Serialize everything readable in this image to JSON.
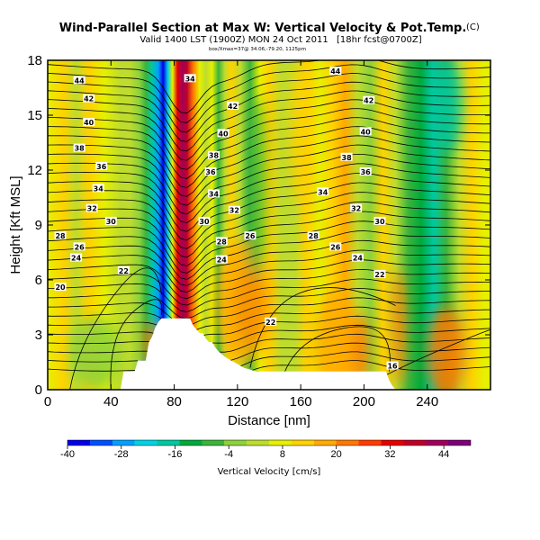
{
  "chart_data": {
    "type": "heatmap",
    "title": "Wind-Parallel Section at Max W: Vertical Velocity & Pot.Temp.",
    "title_mark": "(C)",
    "subtitle": "Valid 1400 LST (1900Z) MON 24 Oct 2011",
    "subtitle_note": "[18hr fcst@0700Z]",
    "fineprint": "box/Xmax=37@ 34.06,-79.20, 1125pm",
    "xlabel": "Distance [nm]",
    "ylabel": "Height [Kft MSL]",
    "xlim": [
      0,
      280
    ],
    "ylim": [
      0,
      18
    ],
    "xticks": [
      0,
      40,
      80,
      120,
      160,
      200,
      240
    ],
    "yticks": [
      0,
      3,
      6,
      9,
      12,
      15,
      18
    ],
    "grid": false,
    "colorbar": {
      "label": "Vertical Velocity [cm/s]",
      "range": [
        -40,
        50
      ],
      "ticks": [
        -40,
        -28,
        -16,
        -4,
        8,
        20,
        32,
        44
      ],
      "colors": [
        "#0000e6",
        "#0050ff",
        "#00a0ff",
        "#00d2e6",
        "#00c8a0",
        "#00aa3c",
        "#3cb43c",
        "#8cd23c",
        "#bedc2d",
        "#e6f000",
        "#ffd200",
        "#ffaa00",
        "#ff7800",
        "#ff3c00",
        "#e60000",
        "#be0028",
        "#a0005a",
        "#7d0078"
      ]
    },
    "theta_contours": {
      "units": "C",
      "levels": [
        16,
        20,
        22,
        24,
        26,
        28,
        30,
        32,
        34,
        36,
        38,
        40,
        42,
        44
      ],
      "labels": [
        {
          "text": "44",
          "x": 20,
          "y": 16.9
        },
        {
          "text": "42",
          "x": 26,
          "y": 15.9
        },
        {
          "text": "40",
          "x": 26,
          "y": 14.6
        },
        {
          "text": "38",
          "x": 20,
          "y": 13.2
        },
        {
          "text": "36",
          "x": 34,
          "y": 12.2
        },
        {
          "text": "34",
          "x": 32,
          "y": 11.0
        },
        {
          "text": "32",
          "x": 28,
          "y": 9.9
        },
        {
          "text": "30",
          "x": 40,
          "y": 9.2
        },
        {
          "text": "28",
          "x": 8,
          "y": 8.4
        },
        {
          "text": "26",
          "x": 20,
          "y": 7.8
        },
        {
          "text": "24",
          "x": 18,
          "y": 7.2
        },
        {
          "text": "22",
          "x": 48,
          "y": 6.5
        },
        {
          "text": "20",
          "x": 8,
          "y": 5.6
        },
        {
          "text": "34",
          "x": 90,
          "y": 17.0
        },
        {
          "text": "42",
          "x": 117,
          "y": 15.5
        },
        {
          "text": "40",
          "x": 111,
          "y": 14.0
        },
        {
          "text": "38",
          "x": 105,
          "y": 12.8
        },
        {
          "text": "36",
          "x": 103,
          "y": 11.9
        },
        {
          "text": "34",
          "x": 105,
          "y": 10.7
        },
        {
          "text": "32",
          "x": 118,
          "y": 9.8
        },
        {
          "text": "30",
          "x": 99,
          "y": 9.2
        },
        {
          "text": "28",
          "x": 110,
          "y": 8.1
        },
        {
          "text": "26",
          "x": 128,
          "y": 8.4
        },
        {
          "text": "24",
          "x": 110,
          "y": 7.1
        },
        {
          "text": "22",
          "x": 141,
          "y": 3.7
        },
        {
          "text": "44",
          "x": 182,
          "y": 17.4
        },
        {
          "text": "42",
          "x": 203,
          "y": 15.8
        },
        {
          "text": "40",
          "x": 201,
          "y": 14.1
        },
        {
          "text": "38",
          "x": 189,
          "y": 12.7
        },
        {
          "text": "36",
          "x": 201,
          "y": 11.9
        },
        {
          "text": "34",
          "x": 174,
          "y": 10.8
        },
        {
          "text": "32",
          "x": 195,
          "y": 9.9
        },
        {
          "text": "30",
          "x": 210,
          "y": 9.2
        },
        {
          "text": "28",
          "x": 168,
          "y": 8.4
        },
        {
          "text": "26",
          "x": 182,
          "y": 7.8
        },
        {
          "text": "24",
          "x": 196,
          "y": 7.2
        },
        {
          "text": "22",
          "x": 210,
          "y": 6.3
        },
        {
          "text": "16",
          "x": 218,
          "y": 1.3
        }
      ]
    },
    "terrain_cm": {
      "x": [
        0,
        46,
        48,
        55,
        57,
        62,
        64,
        66,
        68,
        70,
        72,
        74,
        78,
        82,
        86,
        90,
        92,
        94,
        96,
        98,
        100,
        102,
        104,
        106,
        108,
        112,
        116,
        120,
        124,
        128,
        132,
        136,
        150,
        170,
        190,
        210,
        214,
        216,
        218,
        220,
        240,
        260,
        280
      ],
      "y": [
        0,
        0,
        1.0,
        1.0,
        1.6,
        1.6,
        2.6,
        2.9,
        3.4,
        3.7,
        3.9,
        3.9,
        3.9,
        3.9,
        3.9,
        3.9,
        3.5,
        3.3,
        3.1,
        3.1,
        2.8,
        2.6,
        2.6,
        2.3,
        2.1,
        1.8,
        1.6,
        1.4,
        1.2,
        1.1,
        1.0,
        1.0,
        1.0,
        1.0,
        1.0,
        1.0,
        1.0,
        0.5,
        0.2,
        0,
        0,
        0,
        0
      ]
    },
    "w_field_columns": [
      {
        "x": 0,
        "w": 6
      },
      {
        "x": 10,
        "w": 10
      },
      {
        "x": 18,
        "w": 3
      },
      {
        "x": 26,
        "w": 12
      },
      {
        "x": 36,
        "w": 6
      },
      {
        "x": 46,
        "w": 0
      },
      {
        "x": 52,
        "w": 4
      },
      {
        "x": 58,
        "w": -4
      },
      {
        "x": 62,
        "w": -10
      },
      {
        "x": 66,
        "w": -20
      },
      {
        "x": 70,
        "w": -30
      },
      {
        "x": 73,
        "w": -38
      },
      {
        "x": 76,
        "w": -24
      },
      {
        "x": 79,
        "w": 8
      },
      {
        "x": 82,
        "w": 30
      },
      {
        "x": 85,
        "w": 42
      },
      {
        "x": 88,
        "w": 36
      },
      {
        "x": 92,
        "w": 20
      },
      {
        "x": 96,
        "w": 8
      },
      {
        "x": 100,
        "w": 0
      },
      {
        "x": 104,
        "w": 6
      },
      {
        "x": 108,
        "w": -6
      },
      {
        "x": 112,
        "w": 4
      },
      {
        "x": 116,
        "w": 10
      },
      {
        "x": 122,
        "w": 2
      },
      {
        "x": 128,
        "w": -8
      },
      {
        "x": 134,
        "w": 8
      },
      {
        "x": 140,
        "w": 12
      },
      {
        "x": 148,
        "w": 0
      },
      {
        "x": 156,
        "w": 4
      },
      {
        "x": 164,
        "w": 10
      },
      {
        "x": 172,
        "w": 6
      },
      {
        "x": 180,
        "w": 12
      },
      {
        "x": 188,
        "w": 18
      },
      {
        "x": 196,
        "w": 4
      },
      {
        "x": 204,
        "w": -2
      },
      {
        "x": 212,
        "w": 14
      },
      {
        "x": 220,
        "w": 4
      },
      {
        "x": 228,
        "w": -6
      },
      {
        "x": 236,
        "w": -12
      },
      {
        "x": 244,
        "w": -16
      },
      {
        "x": 252,
        "w": -8
      },
      {
        "x": 260,
        "w": 4
      },
      {
        "x": 268,
        "w": 10
      },
      {
        "x": 276,
        "w": 6
      },
      {
        "x": 280,
        "w": 8
      }
    ],
    "w_features": [
      {
        "x": 128,
        "y": 4.6,
        "w": 34,
        "rx": 10,
        "ry": 2.2
      },
      {
        "x": 124,
        "y": 4.8,
        "w": 18,
        "rx": 18,
        "ry": 3.4
      },
      {
        "x": 66,
        "y": 2.6,
        "w": 20,
        "rx": 5,
        "ry": 1.2
      },
      {
        "x": 182,
        "y": 2.4,
        "w": 16,
        "rx": 14,
        "ry": 3.0
      },
      {
        "x": 222,
        "y": 3.4,
        "w": 24,
        "rx": 4,
        "ry": 3.2
      },
      {
        "x": 252,
        "y": 2.0,
        "w": 22,
        "rx": 12,
        "ry": 2.5
      },
      {
        "x": 198,
        "y": 2.2,
        "w": 22,
        "rx": 5,
        "ry": 2.0
      },
      {
        "x": 30,
        "y": 2.0,
        "w": -4,
        "rx": 16,
        "ry": 2.0
      },
      {
        "x": 252,
        "y": 15.5,
        "w": -18,
        "rx": 10,
        "ry": 2.6
      },
      {
        "x": 132,
        "y": 11.0,
        "w": -8,
        "rx": 6,
        "ry": 5.0
      },
      {
        "x": 160,
        "y": 14.0,
        "w": 14,
        "rx": 7,
        "ry": 4.0
      }
    ]
  }
}
